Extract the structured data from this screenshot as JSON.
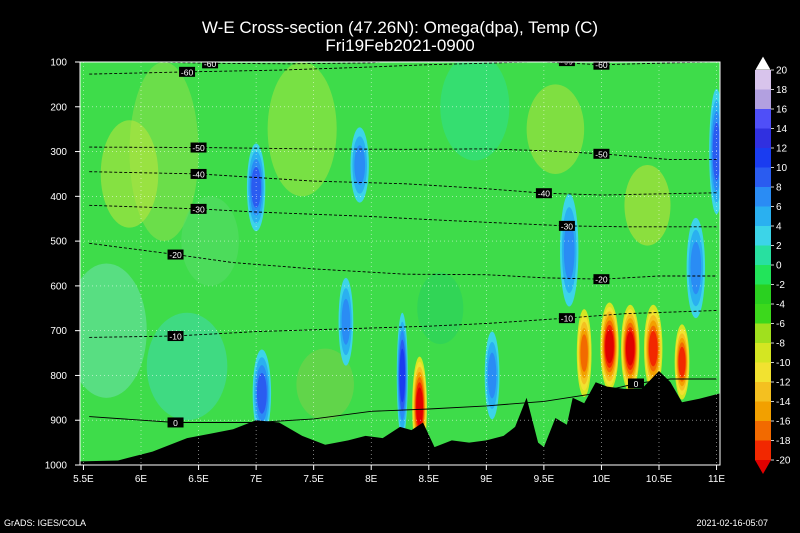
{
  "chart_data": {
    "type": "heatmap",
    "title": "W-E Cross-section (47.26N): Omega(dpa), Temp (C)",
    "subtitle": "Fri19Feb2021-0900",
    "x_ticks": [
      "5.5E",
      "6E",
      "6.5E",
      "7E",
      "7.5E",
      "8E",
      "8.5E",
      "9E",
      "9.5E",
      "10E",
      "10.5E",
      "11E"
    ],
    "x_tick_values": [
      5.5,
      6.0,
      6.5,
      7.0,
      7.5,
      8.0,
      8.5,
      9.0,
      9.5,
      10.0,
      10.5,
      11.0
    ],
    "y_ticks": [
      "100",
      "200",
      "300",
      "400",
      "500",
      "600",
      "700",
      "800",
      "900",
      "1000"
    ],
    "y_tick_values": [
      100,
      200,
      300,
      400,
      500,
      600,
      700,
      800,
      900,
      1000
    ],
    "xlim": [
      5.47,
      11.03
    ],
    "ylim": [
      1000,
      100
    ],
    "y_scale": "linear (pressure, hPa)",
    "grid": true,
    "colorbar": {
      "labels": [
        "20",
        "18",
        "16",
        "14",
        "12",
        "10",
        "8",
        "6",
        "4",
        "2",
        "0",
        "-2",
        "-4",
        "-6",
        "-8",
        "-10",
        "-12",
        "-14",
        "-16",
        "-18",
        "-20"
      ],
      "colors": [
        "#ffffff",
        "#d8c4ec",
        "#b2a0e0",
        "#4f4ff8",
        "#3030e0",
        "#1a3cf0",
        "#2a5cf0",
        "#2a8cf4",
        "#2ab0f0",
        "#3cd4e8",
        "#28e0a0",
        "#22e45a",
        "#2ad020",
        "#3cd81c",
        "#a0e01e",
        "#d4e622",
        "#f2e230",
        "#f4c020",
        "#f2a000",
        "#f26a00",
        "#f22800",
        "#e00000"
      ]
    },
    "temperature_contours": [
      {
        "label": "-60",
        "points": [
          [
            5.55,
            127
          ],
          [
            6.4,
            122
          ],
          [
            7.2,
            118
          ],
          [
            7.9,
            112
          ],
          [
            8.5,
            106
          ],
          [
            9.1,
            102
          ],
          [
            9.7,
            98
          ],
          [
            10.3,
            96
          ],
          [
            11.0,
            95
          ]
        ]
      },
      {
        "label": "-60",
        "points": [
          [
            6.1,
            100
          ],
          [
            6.6,
            103
          ],
          [
            7.3,
            104
          ],
          [
            8.0,
            102
          ],
          [
            8.3,
            95
          ],
          [
            9.1,
            90
          ],
          [
            9.5,
            100
          ],
          [
            10.0,
            106
          ],
          [
            10.6,
            102
          ],
          [
            11.0,
            100
          ]
        ]
      },
      {
        "label": "-50",
        "points": [
          [
            5.55,
            290
          ],
          [
            6.5,
            291
          ],
          [
            7.5,
            294
          ],
          [
            8.3,
            295
          ],
          [
            9.0,
            294
          ],
          [
            9.5,
            298
          ],
          [
            10.0,
            305
          ],
          [
            10.6,
            318
          ],
          [
            11.0,
            318
          ]
        ]
      },
      {
        "label": "-40",
        "points": [
          [
            5.55,
            345
          ],
          [
            6.5,
            350
          ],
          [
            7.0,
            358
          ],
          [
            7.5,
            366
          ],
          [
            8.3,
            372
          ],
          [
            9.0,
            383
          ],
          [
            9.5,
            393
          ],
          [
            10.0,
            397
          ],
          [
            11.0,
            392
          ]
        ]
      },
      {
        "label": "-30",
        "points": [
          [
            5.55,
            420
          ],
          [
            6.5,
            428
          ],
          [
            7.0,
            435
          ],
          [
            8.0,
            445
          ],
          [
            8.5,
            452
          ],
          [
            9.0,
            458
          ],
          [
            9.7,
            466
          ],
          [
            10.2,
            468
          ],
          [
            11.0,
            468
          ]
        ]
      },
      {
        "label": "-20",
        "points": [
          [
            5.55,
            505
          ],
          [
            6.3,
            530
          ],
          [
            6.8,
            548
          ],
          [
            7.5,
            562
          ],
          [
            8.3,
            574
          ],
          [
            9.0,
            575
          ],
          [
            9.5,
            582
          ],
          [
            10.0,
            585
          ],
          [
            10.5,
            578
          ],
          [
            11.0,
            578
          ]
        ]
      },
      {
        "label": "-10",
        "points": [
          [
            5.55,
            715
          ],
          [
            6.3,
            712
          ],
          [
            7.0,
            702
          ],
          [
            8.0,
            694
          ],
          [
            8.5,
            690
          ],
          [
            9.0,
            684
          ],
          [
            9.7,
            672
          ],
          [
            10.2,
            662
          ],
          [
            11.0,
            655
          ]
        ]
      },
      {
        "label": "0",
        "points": [
          [
            5.55,
            892
          ],
          [
            6.3,
            905
          ],
          [
            7.0,
            905
          ],
          [
            7.5,
            897
          ],
          [
            8.0,
            880
          ],
          [
            8.5,
            875
          ],
          [
            9.0,
            868
          ],
          [
            9.5,
            858
          ],
          [
            9.9,
            842
          ],
          [
            10.3,
            818
          ],
          [
            10.6,
            808
          ],
          [
            11.0,
            808
          ]
        ]
      }
    ],
    "terrain_surface_pressure": {
      "x": [
        5.47,
        5.8,
        6.1,
        6.4,
        6.6,
        6.8,
        7.0,
        7.2,
        7.4,
        7.6,
        7.8,
        7.95,
        8.1,
        8.25,
        8.35,
        8.45,
        8.55,
        8.7,
        8.85,
        9.0,
        9.15,
        9.25,
        9.35,
        9.45,
        9.5,
        9.6,
        9.7,
        9.75,
        9.85,
        9.95,
        10.05,
        10.2,
        10.35,
        10.5,
        10.6,
        10.7,
        10.85,
        11.03
      ],
      "p": [
        992,
        990,
        970,
        940,
        930,
        920,
        900,
        905,
        935,
        955,
        945,
        935,
        940,
        915,
        922,
        905,
        960,
        945,
        950,
        945,
        935,
        915,
        850,
        950,
        960,
        895,
        910,
        850,
        862,
        815,
        825,
        830,
        830,
        790,
        815,
        860,
        852,
        840
      ]
    },
    "omega_features": [
      {
        "sign": "negative",
        "x": 10.07,
        "p": 735,
        "value": -20,
        "wx": 0.05,
        "wp": 70
      },
      {
        "sign": "negative",
        "x": 10.25,
        "p": 740,
        "value": -20,
        "wx": 0.05,
        "wp": 70
      },
      {
        "sign": "negative",
        "x": 10.45,
        "p": 740,
        "value": -18,
        "wx": 0.05,
        "wp": 70
      },
      {
        "sign": "negative",
        "x": 10.7,
        "p": 770,
        "value": -18,
        "wx": 0.04,
        "wp": 60
      },
      {
        "sign": "negative",
        "x": 8.42,
        "p": 870,
        "value": -20,
        "wx": 0.04,
        "wp": 80
      },
      {
        "sign": "negative",
        "x": 9.85,
        "p": 750,
        "value": -14,
        "wx": 0.04,
        "wp": 70
      },
      {
        "sign": "positive",
        "x": 7.0,
        "p": 380,
        "value": 12,
        "wx": 0.05,
        "wp": 70
      },
      {
        "sign": "positive",
        "x": 9.72,
        "p": 520,
        "value": 10,
        "wx": 0.05,
        "wp": 90
      },
      {
        "sign": "positive",
        "x": 10.82,
        "p": 560,
        "value": 10,
        "wx": 0.05,
        "wp": 80
      },
      {
        "sign": "positive",
        "x": 11.0,
        "p": 300,
        "value": 12,
        "wx": 0.04,
        "wp": 100
      },
      {
        "sign": "positive",
        "x": 8.27,
        "p": 800,
        "value": 14,
        "wx": 0.03,
        "wp": 100
      },
      {
        "sign": "positive",
        "x": 7.05,
        "p": 840,
        "value": 12,
        "wx": 0.05,
        "wp": 70
      },
      {
        "sign": "positive",
        "x": 9.05,
        "p": 800,
        "value": 8,
        "wx": 0.04,
        "wp": 70
      },
      {
        "sign": "positive",
        "x": 7.78,
        "p": 680,
        "value": 8,
        "wx": 0.04,
        "wp": 70
      },
      {
        "sign": "positive",
        "x": 7.9,
        "p": 330,
        "value": 8,
        "wx": 0.05,
        "wp": 60
      }
    ]
  },
  "footer": {
    "left": "GrADS: IGES/COLA",
    "right": "2021-02-16-05:07"
  }
}
